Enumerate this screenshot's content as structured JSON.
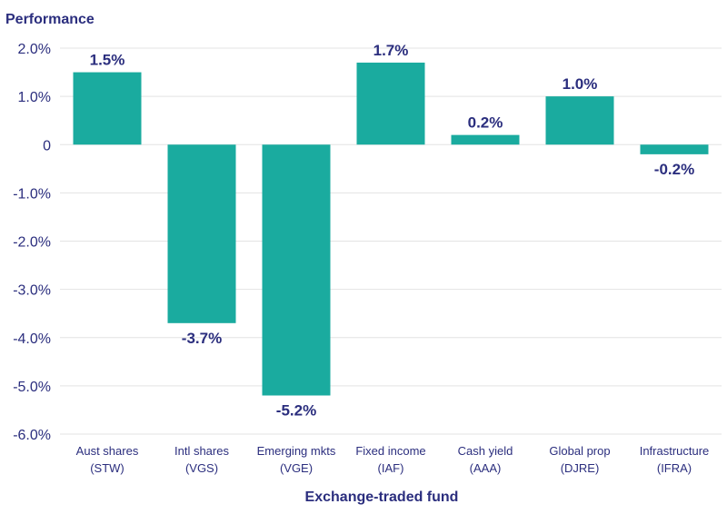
{
  "chart_data": {
    "type": "bar",
    "title": "",
    "ylabel": "Performance",
    "xlabel": "Exchange-traded fund",
    "ylim": [
      -6.0,
      2.0
    ],
    "yticks": [
      2.0,
      1.0,
      0,
      -1.0,
      -2.0,
      -3.0,
      -4.0,
      -5.0,
      -6.0
    ],
    "ytick_labels": [
      "2.0%",
      "1.0%",
      "0",
      "-1.0%",
      "-2.0%",
      "-3.0%",
      "-4.0%",
      "-5.0%",
      "-6.0%"
    ],
    "categories": [
      [
        "Aust shares",
        "(STW)"
      ],
      [
        "Intl shares",
        "(VGS)"
      ],
      [
        "Emerging mkts",
        "(VGE)"
      ],
      [
        "Fixed income",
        "(IAF)"
      ],
      [
        "Cash yield",
        "(AAA)"
      ],
      [
        "Global prop",
        "(DJRE)"
      ],
      [
        "Infrastructure",
        "(IFRA)"
      ]
    ],
    "values": [
      1.5,
      -3.7,
      -5.2,
      1.7,
      0.2,
      1.0,
      -0.2
    ],
    "value_labels": [
      "1.5%",
      "-3.7%",
      "-5.2%",
      "1.7%",
      "0.2%",
      "1.0%",
      "-0.2%"
    ],
    "grid": true,
    "bar_color": "#1aab9f",
    "text_color": "#2b2e7e"
  }
}
